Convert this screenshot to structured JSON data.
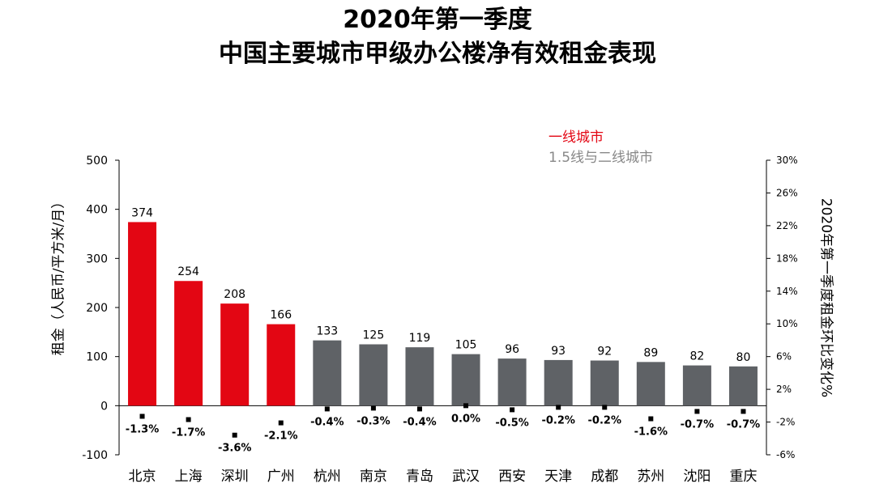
{
  "title": {
    "line1": "2020年第一季度",
    "line2": "中国主要城市甲级办公楼净有效租金表现"
  },
  "legend": {
    "first_tier": "一线城市",
    "second_tier": "1.5线与二线城市"
  },
  "colors": {
    "first_tier": "#e30613",
    "second_tier": "#5f6266",
    "legend_second": "#888888",
    "axis": "#000000"
  },
  "chart_data": {
    "type": "bar",
    "title": "2020年第一季度 中国主要城市甲级办公楼净有效租金表现",
    "ylabel": "租金（人民币/平方米/月）",
    "y2label": "2020年第一季度租金环比变化%",
    "ylim": [
      -100,
      500
    ],
    "y_ticks": [
      "500",
      "400",
      "300",
      "200",
      "100",
      "0",
      "-100"
    ],
    "y_tick_values": [
      500,
      400,
      300,
      200,
      100,
      0,
      -100
    ],
    "y2lim": [
      -6,
      30
    ],
    "y2_ticks": [
      "30%",
      "26%",
      "22%",
      "18%",
      "14%",
      "10%",
      "6%",
      "2%",
      "-2%",
      "-6%"
    ],
    "y2_tick_values": [
      30,
      26,
      22,
      18,
      14,
      10,
      6,
      2,
      -2,
      -6
    ],
    "categories": [
      "北京",
      "上海",
      "深圳",
      "广州",
      "杭州",
      "南京",
      "青岛",
      "武汉",
      "西安",
      "天津",
      "成都",
      "苏州",
      "沈阳",
      "重庆"
    ],
    "tier": [
      "first",
      "first",
      "first",
      "first",
      "second",
      "second",
      "second",
      "second",
      "second",
      "second",
      "second",
      "second",
      "second",
      "second"
    ],
    "series": [
      {
        "name": "租金",
        "axis": "left",
        "values": [
          374,
          254,
          208,
          166,
          133,
          125,
          119,
          105,
          96,
          93,
          92,
          89,
          82,
          80
        ],
        "labels": [
          "374",
          "254",
          "208",
          "166",
          "133",
          "125",
          "119",
          "105",
          "96",
          "93",
          "92",
          "89",
          "82",
          "80"
        ]
      },
      {
        "name": "环比变化",
        "axis": "right",
        "marker": "square",
        "values": [
          -1.3,
          -1.7,
          -3.6,
          -2.1,
          -0.4,
          -0.3,
          -0.4,
          0.0,
          -0.5,
          -0.2,
          -0.2,
          -1.6,
          -0.7,
          -0.7
        ],
        "labels": [
          "-1.3%",
          "-1.7%",
          "-3.6%",
          "-2.1%",
          "-0.4%",
          "-0.3%",
          "-0.4%",
          "0.0%",
          "-0.5%",
          "-0.2%",
          "-0.2%",
          "-1.6%",
          "-0.7%",
          "-0.7%"
        ]
      }
    ]
  }
}
